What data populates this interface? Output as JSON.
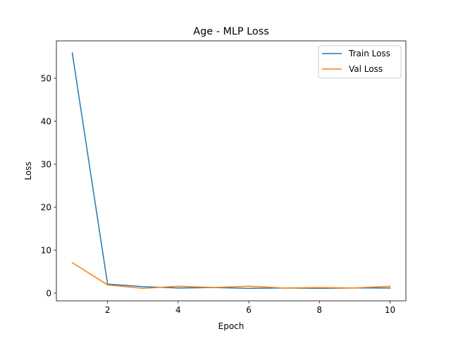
{
  "chart_data": {
    "type": "line",
    "title": "Age - MLP Loss",
    "xlabel": "Epoch",
    "ylabel": "Loss",
    "x": [
      1,
      2,
      3,
      4,
      5,
      6,
      7,
      8,
      9,
      10
    ],
    "xlim": [
      0.55,
      10.45
    ],
    "ylim": [
      -1.8,
      58.7
    ],
    "xticks": [
      2,
      4,
      6,
      8,
      10
    ],
    "yticks": [
      0,
      10,
      20,
      30,
      40,
      50
    ],
    "grid": false,
    "legend_position": "top-right",
    "series": [
      {
        "name": "Train Loss",
        "color": "#1f77b4",
        "values": [
          55.9,
          2.1,
          1.5,
          1.2,
          1.3,
          1.1,
          1.2,
          1.1,
          1.2,
          1.2
        ]
      },
      {
        "name": "Val Loss",
        "color": "#ff7f0e",
        "values": [
          7.1,
          1.9,
          1.1,
          1.6,
          1.3,
          1.6,
          1.2,
          1.3,
          1.2,
          1.6
        ]
      }
    ]
  }
}
